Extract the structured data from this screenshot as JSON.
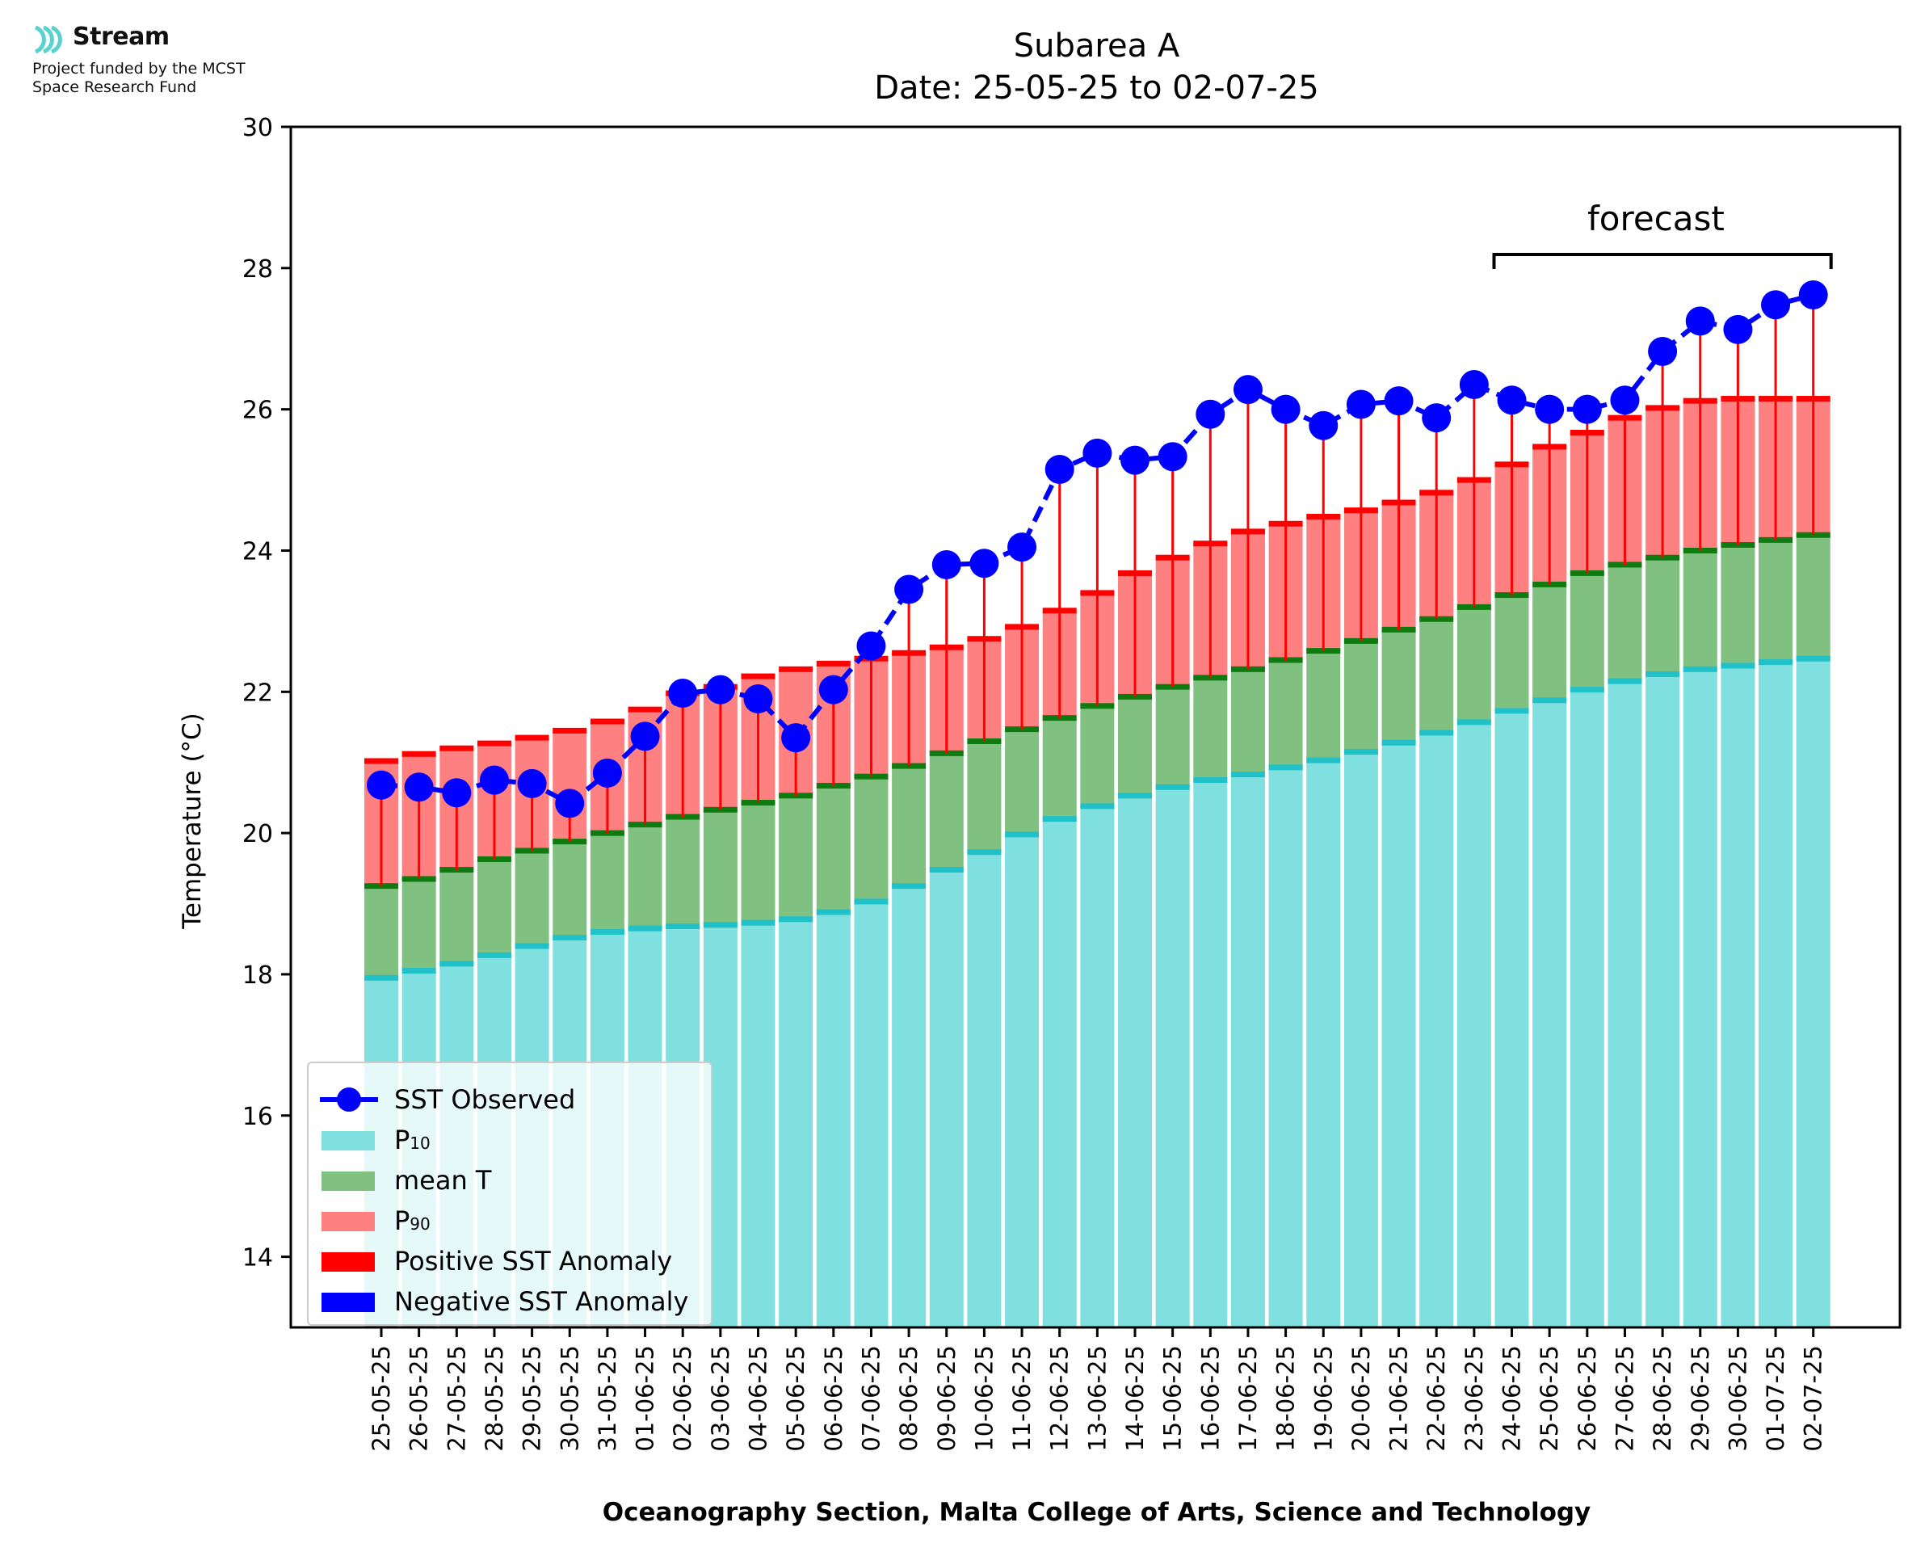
{
  "logo": {
    "name": "Stream",
    "subtitle_line1": "Project funded by the MCST",
    "subtitle_line2": "Space Research Fund",
    "accent_color": "#5ad1cf"
  },
  "chart_data": {
    "type": "bar",
    "title": "Subarea A",
    "subtitle": "Date: 25-05-25 to 02-07-25",
    "xlabel": "Oceanography Section, Malta College of Arts, Science and Technology",
    "ylabel": "Temperature (°C)",
    "ylim": [
      13,
      30
    ],
    "yticks": [
      14,
      16,
      18,
      20,
      22,
      24,
      26,
      28,
      30
    ],
    "categories": [
      "25-05-25",
      "26-05-25",
      "27-05-25",
      "28-05-25",
      "29-05-25",
      "30-05-25",
      "31-05-25",
      "01-06-25",
      "02-06-25",
      "03-06-25",
      "04-06-25",
      "05-06-25",
      "06-06-25",
      "07-06-25",
      "08-06-25",
      "09-06-25",
      "10-06-25",
      "11-06-25",
      "12-06-25",
      "13-06-25",
      "14-06-25",
      "15-06-25",
      "16-06-25",
      "17-06-25",
      "18-06-25",
      "19-06-25",
      "20-06-25",
      "21-06-25",
      "22-06-25",
      "23-06-25",
      "24-06-25",
      "25-06-25",
      "26-06-25",
      "27-06-25",
      "28-06-25",
      "29-06-25",
      "30-06-25",
      "01-07-25",
      "02-07-25"
    ],
    "series": [
      {
        "name": "P10",
        "color": "#80dfdf",
        "edge_color": "#20c1c9",
        "values": [
          17.95,
          18.05,
          18.15,
          18.27,
          18.4,
          18.52,
          18.6,
          18.65,
          18.68,
          18.7,
          18.73,
          18.78,
          18.88,
          19.03,
          19.25,
          19.48,
          19.73,
          19.98,
          20.2,
          20.38,
          20.53,
          20.65,
          20.75,
          20.83,
          20.93,
          21.03,
          21.15,
          21.28,
          21.42,
          21.57,
          21.73,
          21.88,
          22.03,
          22.15,
          22.25,
          22.32,
          22.37,
          22.42,
          22.47
        ]
      },
      {
        "name": "mean T",
        "color": "#80c080",
        "edge_color": "#0f7a0f",
        "values": [
          19.25,
          19.35,
          19.48,
          19.63,
          19.75,
          19.88,
          20.0,
          20.12,
          20.23,
          20.33,
          20.43,
          20.53,
          20.67,
          20.8,
          20.95,
          21.13,
          21.3,
          21.47,
          21.63,
          21.8,
          21.93,
          22.07,
          22.2,
          22.32,
          22.45,
          22.58,
          22.72,
          22.88,
          23.03,
          23.2,
          23.37,
          23.52,
          23.68,
          23.8,
          23.9,
          24.0,
          24.08,
          24.15,
          24.22
        ]
      },
      {
        "name": "P90",
        "color": "#ff8080",
        "edge_color": "#ff0000",
        "values": [
          21.02,
          21.12,
          21.2,
          21.27,
          21.35,
          21.45,
          21.58,
          21.75,
          21.98,
          22.07,
          22.22,
          22.32,
          22.4,
          22.47,
          22.55,
          22.63,
          22.75,
          22.92,
          23.15,
          23.4,
          23.68,
          23.9,
          24.1,
          24.27,
          24.38,
          24.48,
          24.57,
          24.68,
          24.82,
          25.0,
          25.22,
          25.47,
          25.67,
          25.88,
          26.02,
          26.12,
          26.15,
          26.15,
          26.15
        ]
      },
      {
        "name": "SST Observed",
        "color": "#0000ff",
        "values": [
          20.68,
          20.65,
          20.57,
          20.75,
          20.7,
          20.42,
          20.85,
          21.37,
          21.98,
          22.03,
          21.9,
          21.35,
          22.03,
          22.65,
          23.45,
          23.8,
          23.82,
          24.05,
          25.15,
          25.38,
          25.28,
          25.33,
          25.93,
          26.28,
          26.0,
          25.77,
          26.07,
          26.12,
          25.88,
          26.35,
          26.13,
          26.0,
          26.0,
          26.13,
          26.82,
          27.25,
          27.13,
          27.48,
          27.62
        ]
      }
    ],
    "legend": {
      "position": "lower-left",
      "entries": [
        "SST Observed",
        "P10",
        "mean T",
        "P90",
        "Positive SST Anomaly",
        "Negative SST Anomaly"
      ],
      "p10_base": "P",
      "p10_sub": "10",
      "p90_base": "P",
      "p90_sub": "90"
    },
    "anomaly_colors": {
      "positive": "#ff0000",
      "negative": "#0000ff"
    },
    "forecast": {
      "label": "forecast",
      "start_category": "24-06-25",
      "end_category": "02-07-25"
    },
    "grid": false
  }
}
